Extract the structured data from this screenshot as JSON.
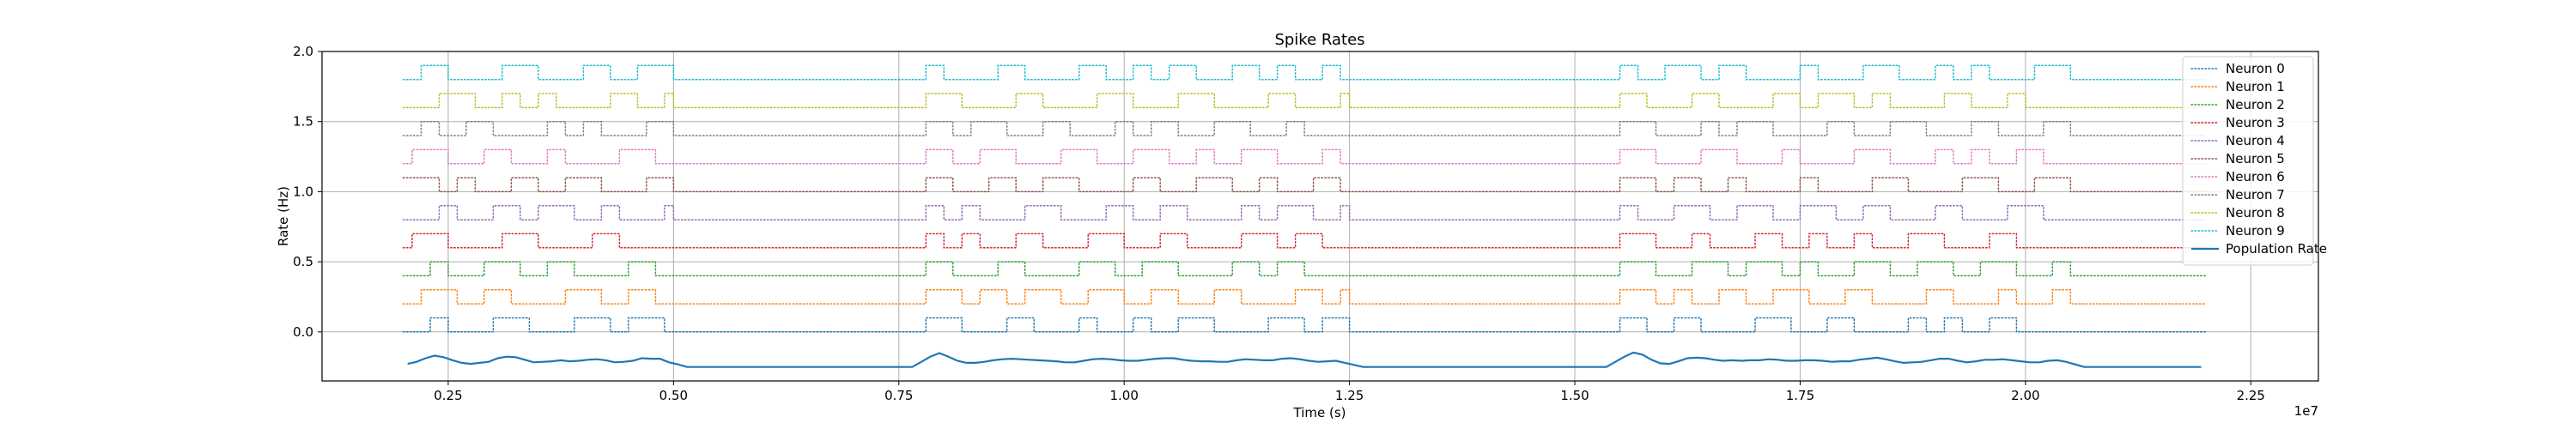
{
  "chart_data": {
    "type": "line",
    "title": "Spike Rates",
    "xlabel": "Time (s)",
    "ylabel": "Rate (Hz)",
    "x_multiplier": "1e7",
    "xlim": [
      1100000,
      23250000
    ],
    "ylim": [
      -0.35,
      2.0
    ],
    "xticks": [
      2500000,
      5000000,
      7500000,
      10000000,
      12500000,
      15000000,
      17500000,
      20000000,
      22500000
    ],
    "xtick_labels": [
      "0.25",
      "0.50",
      "0.75",
      "1.00",
      "1.25",
      "1.50",
      "1.75",
      "2.00",
      "2.25"
    ],
    "yticks": [
      0.0,
      0.5,
      1.0,
      1.5,
      2.0
    ],
    "ytick_labels": [
      "0.0",
      "0.5",
      "1.0",
      "1.5",
      "2.0"
    ],
    "grid": true,
    "legend_position": "top-right",
    "x_start": 2000000,
    "x_end": 22000000,
    "silent_intervals": [
      [
        5000000,
        7800000
      ],
      [
        12500000,
        15500000
      ],
      [
        20500000,
        22000000
      ]
    ],
    "series": [
      {
        "name": "Neuron 0",
        "offset": 0.0,
        "color": "#1f77b4",
        "style": "dotted"
      },
      {
        "name": "Neuron 1",
        "offset": 0.2,
        "color": "#ff7f0e",
        "style": "dotted"
      },
      {
        "name": "Neuron 2",
        "offset": 0.4,
        "color": "#2ca02c",
        "style": "dotted"
      },
      {
        "name": "Neuron 3",
        "offset": 0.6,
        "color": "#d62728",
        "style": "dotted"
      },
      {
        "name": "Neuron 4",
        "offset": 0.8,
        "color": "#9467bd",
        "style": "dotted"
      },
      {
        "name": "Neuron 5",
        "offset": 1.0,
        "color": "#8c564b",
        "style": "dotted"
      },
      {
        "name": "Neuron 6",
        "offset": 1.2,
        "color": "#e377c2",
        "style": "dotted"
      },
      {
        "name": "Neuron 7",
        "offset": 1.4,
        "color": "#7f7f7f",
        "style": "dotted"
      },
      {
        "name": "Neuron 8",
        "offset": 1.6,
        "color": "#bcbd22",
        "style": "dotted"
      },
      {
        "name": "Neuron 9",
        "offset": 1.8,
        "color": "#17becf",
        "style": "dotted"
      },
      {
        "name": "Population Rate",
        "offset": -0.25,
        "color": "#1f77b4",
        "style": "solid"
      }
    ],
    "pulse_height": 0.1,
    "population_base": -0.25,
    "population_peak": -0.2
  }
}
